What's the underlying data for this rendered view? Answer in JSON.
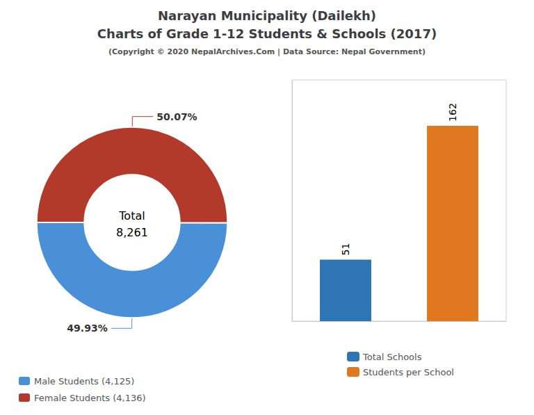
{
  "title": "Narayan Municipality (Dailekh)",
  "subtitle": "Charts of Grade 1-12 Students & Schools (2017)",
  "annotations": [
    "(Copyright © 2020 NepalArchives.Com | Data Source: Nepal Government)"
  ],
  "chart_data": [
    {
      "type": "pie",
      "categories": [
        "Male Students (4,125)",
        "Female Students (4,136)"
      ],
      "values": [
        49.93,
        50.07
      ],
      "value_labels": [
        "49.93%",
        "50.07%"
      ],
      "colors": [
        "#4a90d9",
        "#b33a2a"
      ],
      "data_labels": true,
      "legend": "lower left",
      "annotations": [
        "Total",
        "8,261"
      ]
    },
    {
      "type": "bar",
      "categories": [
        "Total Schools",
        "Students per School"
      ],
      "values": [
        51,
        162
      ],
      "colors": [
        "#2e75b6",
        "#e07820"
      ],
      "ylim": [
        0,
        200
      ],
      "grid": false,
      "tick_labels": false,
      "data_labels": true,
      "legend": "lower center"
    }
  ]
}
